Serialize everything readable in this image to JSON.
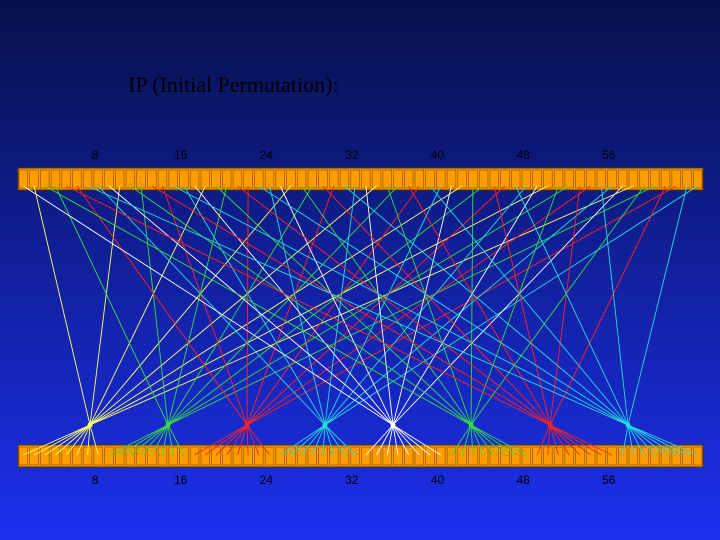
{
  "title": "IP (Initial Permutation):",
  "top_labels": [
    "8",
    "16",
    "24",
    "32",
    "40",
    "48",
    "56"
  ],
  "bottom_labels": [
    "8",
    "16",
    "24",
    "32",
    "40",
    "48",
    "56"
  ]
}
